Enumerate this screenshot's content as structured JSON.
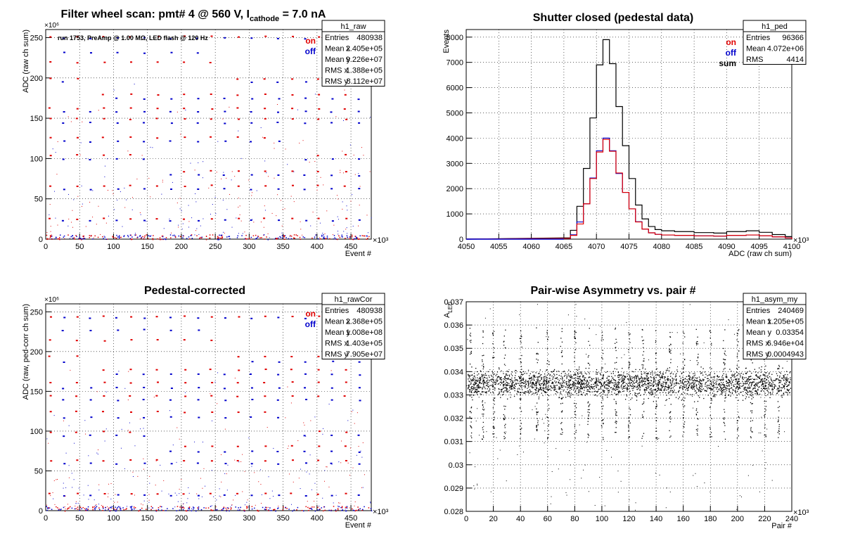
{
  "chart_data": [
    {
      "id": "raw",
      "type": "scatter",
      "title": "Filter wheel scan: pmt#   4 @   560 V, I",
      "title_sub": "cathode",
      "title_tail": " = 7.0 nA",
      "annotation": "run 1753, PreAmp @ 1.00 MΩ, LED flash @  120 Hz",
      "xlabel": "Event #",
      "ylabel": "ADC (raw ch sum)",
      "x_exponent": "×10³",
      "y_exponent": "×10⁶",
      "xlim": [
        0,
        480
      ],
      "ylim": [
        0,
        260
      ],
      "x_ticks": [
        0,
        50,
        100,
        150,
        200,
        250,
        300,
        350,
        400,
        450
      ],
      "y_ticks": [
        0,
        50,
        100,
        150,
        200,
        250
      ],
      "legend": {
        "position": "top-right",
        "items": [
          {
            "label": "on",
            "color": "#e00000"
          },
          {
            "label": "off",
            "color": "#0000cc"
          }
        ]
      },
      "levels_on": [
        252,
        220,
        200,
        180,
        163,
        150,
        127,
        105,
        85,
        67,
        26
      ],
      "levels_off": [
        250,
        232,
        196,
        175,
        159,
        145,
        122,
        100,
        80,
        63,
        24
      ],
      "stats": {
        "name": "h1_raw",
        "rows": [
          [
            "Entries",
            "480938"
          ],
          [
            "Mean x",
            "2.405e+05"
          ],
          [
            "Mean y",
            "9.226e+07"
          ],
          [
            "RMS x",
            "1.388e+05"
          ],
          [
            "RMS y",
            "8.112e+07"
          ]
        ]
      }
    },
    {
      "id": "ped",
      "type": "histogram",
      "title": "Shutter closed (pedestal data)",
      "xlabel": "ADC (raw ch sum)",
      "ylabel": "Events",
      "x_exponent": "×10³",
      "xlim": [
        4050,
        4100
      ],
      "ylim": [
        0,
        8300
      ],
      "x_ticks": [
        4050,
        4055,
        4060,
        4065,
        4070,
        4075,
        4080,
        4085,
        4090,
        4095,
        4100
      ],
      "y_ticks": [
        0,
        1000,
        2000,
        3000,
        4000,
        5000,
        6000,
        7000,
        8000
      ],
      "legend": {
        "position": "top-right",
        "items": [
          {
            "label": "on",
            "color": "#e00000"
          },
          {
            "label": "off",
            "color": "#0000cc"
          },
          {
            "label": "sum",
            "color": "#000000"
          }
        ]
      },
      "series_sum": {
        "name": "sum",
        "x": [
          4065,
          4066,
          4067,
          4068,
          4069,
          4070,
          4071,
          4072,
          4073,
          4074,
          4075,
          4076,
          4077,
          4078,
          4079,
          4080,
          4082,
          4085,
          4088,
          4090,
          4093,
          4095,
          4097,
          4099
        ],
        "y": [
          50,
          350,
          1300,
          2800,
          4800,
          6900,
          7900,
          6950,
          5250,
          3700,
          2400,
          1350,
          800,
          500,
          380,
          330,
          300,
          260,
          240,
          300,
          330,
          270,
          180,
          100
        ]
      },
      "series_on": {
        "name": "on",
        "x": [
          4065,
          4066,
          4067,
          4068,
          4069,
          4070,
          4071,
          4072,
          4073,
          4074,
          4075,
          4076,
          4077,
          4078,
          4079,
          4080,
          4082,
          4085,
          4088,
          4090,
          4093,
          4095,
          4097,
          4099
        ],
        "y": [
          30,
          150,
          600,
          1400,
          2400,
          3450,
          3950,
          3480,
          2620,
          1850,
          1200,
          680,
          400,
          250,
          190,
          165,
          150,
          130,
          120,
          150,
          165,
          135,
          90,
          50
        ]
      },
      "series_off": {
        "name": "off",
        "x": [
          4065,
          4066,
          4067,
          4068,
          4069,
          4070,
          4071,
          4072,
          4073,
          4074,
          4075,
          4076,
          4077,
          4078,
          4079,
          4080,
          4082,
          4085,
          4088,
          4090,
          4093,
          4095,
          4097,
          4099
        ],
        "y": [
          25,
          170,
          680,
          1400,
          2420,
          3500,
          4000,
          3500,
          2600,
          1850,
          1200,
          690,
          400,
          250,
          190,
          165,
          150,
          130,
          120,
          150,
          165,
          135,
          90,
          50
        ]
      },
      "stats": {
        "name": "h1_ped",
        "rows": [
          [
            "Entries",
            "96366"
          ],
          [
            "Mean",
            "4.072e+06"
          ],
          [
            "RMS",
            "4414"
          ]
        ]
      }
    },
    {
      "id": "cor",
      "type": "scatter",
      "title": "Pedestal-corrected",
      "xlabel": "Event #",
      "ylabel": "ADC (raw, ped-corr ch sum)",
      "x_exponent": "×10³",
      "y_exponent": "×10⁶",
      "xlim": [
        0,
        480
      ],
      "ylim": [
        0,
        260
      ],
      "x_ticks": [
        0,
        50,
        100,
        150,
        200,
        250,
        300,
        350,
        400,
        450
      ],
      "y_ticks": [
        0,
        50,
        100,
        150,
        200,
        250
      ],
      "legend": {
        "position": "top-right",
        "items": [
          {
            "label": "on",
            "color": "#e00000"
          },
          {
            "label": "off",
            "color": "#0000cc"
          }
        ]
      },
      "levels_on": [
        245,
        215,
        195,
        178,
        162,
        145,
        125,
        100,
        82,
        64,
        22
      ],
      "levels_off": [
        243,
        228,
        188,
        172,
        155,
        140,
        118,
        95,
        75,
        60,
        20
      ],
      "stats": {
        "name": "h1_rawCor",
        "rows": [
          [
            "Entries",
            "480938"
          ],
          [
            "Mean x",
            "2.368e+05"
          ],
          [
            "Mean y",
            "1.008e+08"
          ],
          [
            "RMS x",
            "1.403e+05"
          ],
          [
            "RMS y",
            "7.905e+07"
          ]
        ]
      }
    },
    {
      "id": "asym",
      "type": "scatter",
      "title": "Pair-wise Asymmetry vs. pair #",
      "xlabel": "Pair #",
      "ylabel": "A",
      "ylabel_sub": "LED",
      "x_exponent": "×10³",
      "xlim": [
        0,
        240
      ],
      "ylim": [
        0.028,
        0.037
      ],
      "x_ticks": [
        0,
        20,
        40,
        60,
        80,
        100,
        120,
        140,
        160,
        180,
        200,
        220,
        240
      ],
      "y_ticks": [
        0.028,
        0.029,
        0.03,
        0.031,
        0.032,
        0.033,
        0.034,
        0.035,
        0.036,
        0.037
      ],
      "y_tick_labels": [
        "0.028",
        "0.029",
        "0.03",
        "0.031",
        "0.032",
        "0.033",
        "0.034",
        "0.035",
        "0.036",
        "0.037"
      ],
      "band_center": 0.0335,
      "band_halfwidth": 0.0005,
      "spike_x": [
        3,
        12,
        20,
        28,
        40,
        52,
        60,
        70,
        80,
        90,
        100,
        110,
        120,
        130,
        140,
        150,
        160,
        170,
        180,
        190,
        200,
        210,
        220,
        230
      ],
      "stats": {
        "name": "h1_asym_my",
        "rows": [
          [
            "Entries",
            "240469"
          ],
          [
            "Mean x",
            "1.205e+05"
          ],
          [
            "Mean y",
            "0.03354"
          ],
          [
            "RMS x",
            "6.946e+04"
          ],
          [
            "RMS y",
            "0.0004943"
          ]
        ]
      }
    }
  ]
}
